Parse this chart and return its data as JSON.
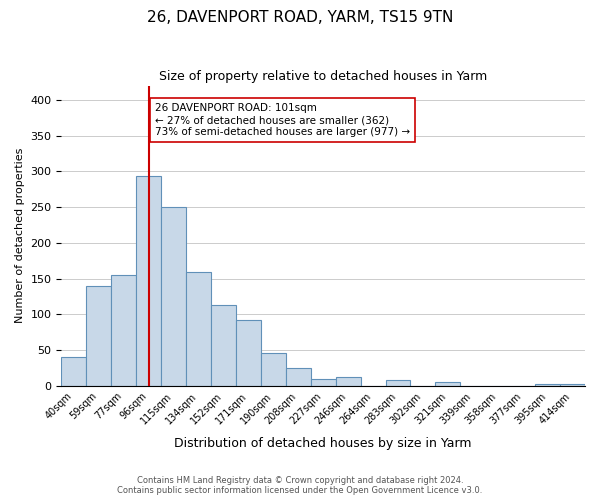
{
  "title1": "26, DAVENPORT ROAD, YARM, TS15 9TN",
  "title2": "Size of property relative to detached houses in Yarm",
  "xlabel": "Distribution of detached houses by size in Yarm",
  "ylabel": "Number of detached properties",
  "bin_labels": [
    "40sqm",
    "59sqm",
    "77sqm",
    "96sqm",
    "115sqm",
    "134sqm",
    "152sqm",
    "171sqm",
    "190sqm",
    "208sqm",
    "227sqm",
    "246sqm",
    "264sqm",
    "283sqm",
    "302sqm",
    "321sqm",
    "339sqm",
    "358sqm",
    "377sqm",
    "395sqm",
    "414sqm"
  ],
  "bar_values": [
    40,
    140,
    155,
    293,
    250,
    160,
    113,
    92,
    46,
    25,
    10,
    13,
    0,
    8,
    0,
    5,
    0,
    0,
    0,
    3,
    3
  ],
  "bar_color": "#c8d8e8",
  "bar_edge_color": "#6090b8",
  "property_line_x": 3.5,
  "property_line_color": "#cc0000",
  "annotation_text": "26 DAVENPORT ROAD: 101sqm\n← 27% of detached houses are smaller (362)\n73% of semi-detached houses are larger (977) →",
  "annotation_box_color": "#ffffff",
  "annotation_box_edge": "#cc0000",
  "ylim": [
    0,
    420
  ],
  "yticks": [
    0,
    50,
    100,
    150,
    200,
    250,
    300,
    350,
    400
  ],
  "footer1": "Contains HM Land Registry data © Crown copyright and database right 2024.",
  "footer2": "Contains public sector information licensed under the Open Government Licence v3.0."
}
